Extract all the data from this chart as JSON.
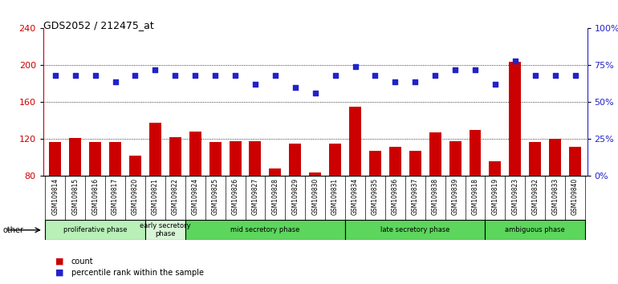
{
  "title": "GDS2052 / 212475_at",
  "samples": [
    "GSM109814",
    "GSM109815",
    "GSM109816",
    "GSM109817",
    "GSM109820",
    "GSM109821",
    "GSM109822",
    "GSM109824",
    "GSM109825",
    "GSM109826",
    "GSM109827",
    "GSM109828",
    "GSM109829",
    "GSM109830",
    "GSM109831",
    "GSM109834",
    "GSM109835",
    "GSM109836",
    "GSM109837",
    "GSM109838",
    "GSM109839",
    "GSM109818",
    "GSM109819",
    "GSM109823",
    "GSM109832",
    "GSM109833",
    "GSM109840"
  ],
  "counts": [
    117,
    121,
    117,
    117,
    102,
    138,
    122,
    128,
    117,
    118,
    118,
    88,
    115,
    84,
    115,
    155,
    107,
    112,
    107,
    127,
    118,
    130,
    96,
    204,
    117,
    120,
    112
  ],
  "percentiles": [
    68,
    68,
    68,
    64,
    68,
    72,
    68,
    68,
    68,
    68,
    62,
    68,
    60,
    56,
    68,
    74,
    68,
    64,
    64,
    68,
    72,
    72,
    62,
    78,
    68,
    68,
    68
  ],
  "phases": [
    {
      "label": "proliferative phase",
      "start": 0,
      "end": 5,
      "color": "#b8f0b8"
    },
    {
      "label": "early secretory\nphase",
      "start": 5,
      "end": 7,
      "color": "#d8f5d8"
    },
    {
      "label": "mid secretory phase",
      "start": 7,
      "end": 15,
      "color": "#5cd65c"
    },
    {
      "label": "late secretory phase",
      "start": 15,
      "end": 22,
      "color": "#5cd65c"
    },
    {
      "label": "ambiguous phase",
      "start": 22,
      "end": 27,
      "color": "#5cd65c"
    }
  ],
  "ylim_left": [
    80,
    240
  ],
  "ylim_right": [
    0,
    100
  ],
  "yticks_left": [
    80,
    120,
    160,
    200,
    240
  ],
  "yticks_right": [
    0,
    25,
    50,
    75,
    100
  ],
  "bar_color": "#cc0000",
  "dot_color": "#2222cc",
  "bg_color": "#ffffff",
  "grid_lines": [
    120,
    160,
    200
  ]
}
